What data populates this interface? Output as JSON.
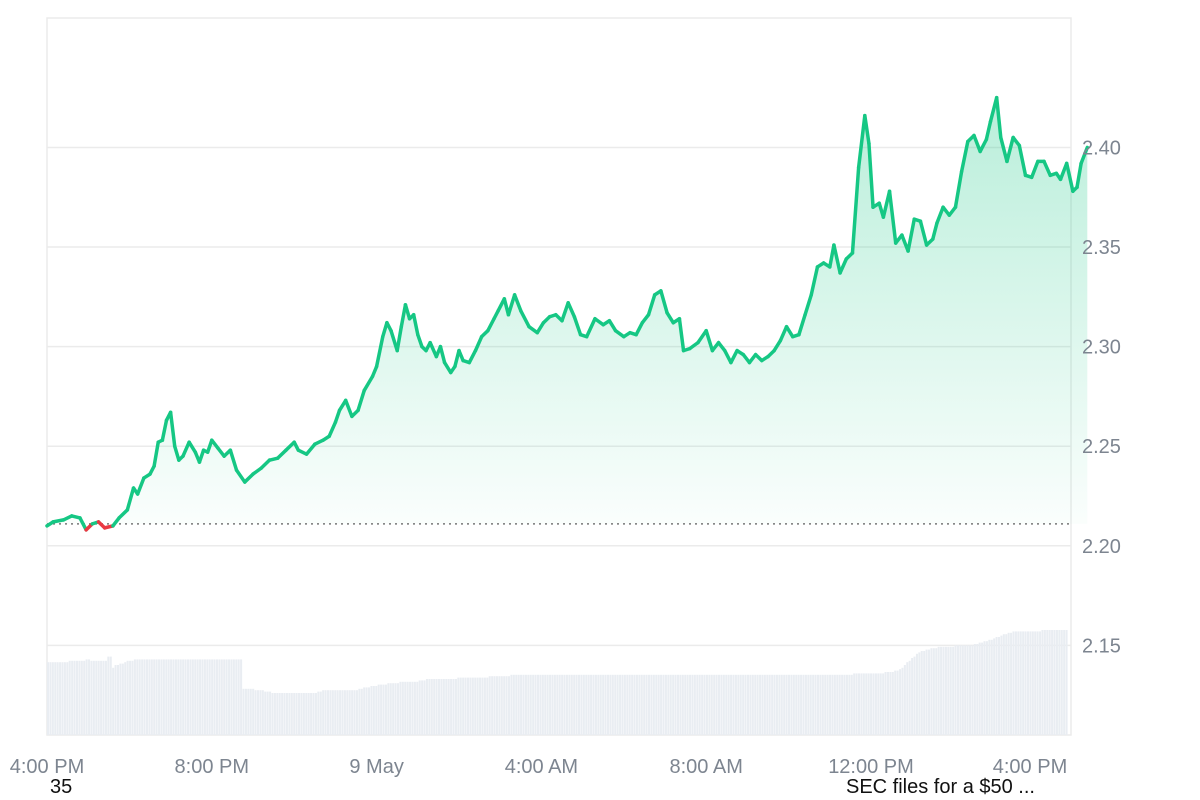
{
  "chart_data": {
    "type": "area",
    "title": "",
    "xlabel": "",
    "ylabel": "",
    "ylim": [
      2.105,
      2.465
    ],
    "y_ticks": [
      "2.40",
      "2.35",
      "2.30",
      "2.25",
      "2.20",
      "2.15"
    ],
    "x_ticks": [
      {
        "label": "4:00 PM",
        "t": 0
      },
      {
        "label": "8:00 PM",
        "t": 4
      },
      {
        "label": "9 May",
        "t": 8
      },
      {
        "label": "4:00 AM",
        "t": 12
      },
      {
        "label": "8:00 AM",
        "t": 16
      },
      {
        "label": "12:00 PM",
        "t": 20
      },
      {
        "label": "4:00 PM",
        "t": 24
      }
    ],
    "x_range_hours": [
      0,
      25
    ],
    "baseline": 2.211,
    "colors": {
      "up": "#16c784",
      "down": "#ea3943",
      "grid": "#ebebeb",
      "volume": "#e9edf2",
      "baseline": "#777777"
    },
    "series": [
      {
        "points": [
          [
            0.0,
            2.21
          ],
          [
            0.15,
            2.212
          ],
          [
            0.4,
            2.213
          ],
          [
            0.6,
            2.215
          ],
          [
            0.8,
            2.214
          ],
          [
            0.95,
            2.208
          ],
          [
            1.1,
            2.211
          ],
          [
            1.25,
            2.212
          ],
          [
            1.4,
            2.209
          ],
          [
            1.6,
            2.21
          ],
          [
            1.75,
            2.214
          ],
          [
            1.95,
            2.218
          ],
          [
            2.1,
            2.229
          ],
          [
            2.2,
            2.226
          ],
          [
            2.35,
            2.234
          ],
          [
            2.5,
            2.236
          ],
          [
            2.6,
            2.24
          ],
          [
            2.7,
            2.252
          ],
          [
            2.8,
            2.253
          ],
          [
            2.9,
            2.263
          ],
          [
            3.0,
            2.267
          ],
          [
            3.1,
            2.25
          ],
          [
            3.2,
            2.243
          ],
          [
            3.3,
            2.245
          ],
          [
            3.45,
            2.252
          ],
          [
            3.6,
            2.247
          ],
          [
            3.7,
            2.242
          ],
          [
            3.8,
            2.248
          ],
          [
            3.9,
            2.247
          ],
          [
            4.0,
            2.253
          ],
          [
            4.15,
            2.249
          ],
          [
            4.3,
            2.245
          ],
          [
            4.45,
            2.248
          ],
          [
            4.6,
            2.238
          ],
          [
            4.8,
            2.232
          ],
          [
            5.0,
            2.236
          ],
          [
            5.2,
            2.239
          ],
          [
            5.4,
            2.243
          ],
          [
            5.6,
            2.244
          ],
          [
            5.8,
            2.248
          ],
          [
            6.0,
            2.252
          ],
          [
            6.1,
            2.248
          ],
          [
            6.3,
            2.246
          ],
          [
            6.5,
            2.251
          ],
          [
            6.7,
            2.253
          ],
          [
            6.85,
            2.255
          ],
          [
            7.0,
            2.262
          ],
          [
            7.1,
            2.268
          ],
          [
            7.25,
            2.273
          ],
          [
            7.4,
            2.265
          ],
          [
            7.55,
            2.268
          ],
          [
            7.7,
            2.278
          ],
          [
            7.9,
            2.285
          ],
          [
            8.0,
            2.29
          ],
          [
            8.15,
            2.305
          ],
          [
            8.25,
            2.312
          ],
          [
            8.35,
            2.308
          ],
          [
            8.5,
            2.298
          ],
          [
            8.6,
            2.31
          ],
          [
            8.7,
            2.321
          ],
          [
            8.8,
            2.314
          ],
          [
            8.9,
            2.316
          ],
          [
            9.0,
            2.306
          ],
          [
            9.1,
            2.3
          ],
          [
            9.2,
            2.298
          ],
          [
            9.3,
            2.302
          ],
          [
            9.45,
            2.295
          ],
          [
            9.55,
            2.3
          ],
          [
            9.65,
            2.292
          ],
          [
            9.8,
            2.287
          ],
          [
            9.9,
            2.29
          ],
          [
            10.0,
            2.298
          ],
          [
            10.1,
            2.293
          ],
          [
            10.25,
            2.292
          ],
          [
            10.4,
            2.298
          ],
          [
            10.55,
            2.305
          ],
          [
            10.7,
            2.308
          ],
          [
            10.85,
            2.314
          ],
          [
            10.95,
            2.318
          ],
          [
            11.1,
            2.324
          ],
          [
            11.2,
            2.316
          ],
          [
            11.35,
            2.326
          ],
          [
            11.5,
            2.318
          ],
          [
            11.7,
            2.31
          ],
          [
            11.9,
            2.307
          ],
          [
            12.05,
            2.312
          ],
          [
            12.2,
            2.315
          ],
          [
            12.35,
            2.316
          ],
          [
            12.5,
            2.313
          ],
          [
            12.65,
            2.322
          ],
          [
            12.8,
            2.315
          ],
          [
            12.95,
            2.306
          ],
          [
            13.1,
            2.305
          ],
          [
            13.3,
            2.314
          ],
          [
            13.5,
            2.311
          ],
          [
            13.65,
            2.313
          ],
          [
            13.8,
            2.308
          ],
          [
            14.0,
            2.305
          ],
          [
            14.15,
            2.307
          ],
          [
            14.3,
            2.306
          ],
          [
            14.45,
            2.312
          ],
          [
            14.6,
            2.316
          ],
          [
            14.75,
            2.326
          ],
          [
            14.9,
            2.328
          ],
          [
            15.05,
            2.317
          ],
          [
            15.2,
            2.312
          ],
          [
            15.35,
            2.314
          ],
          [
            15.45,
            2.298
          ],
          [
            15.6,
            2.299
          ],
          [
            15.8,
            2.302
          ],
          [
            16.0,
            2.308
          ],
          [
            16.15,
            2.298
          ],
          [
            16.3,
            2.302
          ],
          [
            16.45,
            2.298
          ],
          [
            16.6,
            2.292
          ],
          [
            16.75,
            2.298
          ],
          [
            16.9,
            2.296
          ],
          [
            17.05,
            2.292
          ],
          [
            17.2,
            2.296
          ],
          [
            17.35,
            2.293
          ],
          [
            17.5,
            2.295
          ],
          [
            17.65,
            2.298
          ],
          [
            17.8,
            2.303
          ],
          [
            17.95,
            2.31
          ],
          [
            18.1,
            2.305
          ],
          [
            18.25,
            2.306
          ],
          [
            18.4,
            2.316
          ],
          [
            18.55,
            2.326
          ],
          [
            18.7,
            2.34
          ],
          [
            18.85,
            2.342
          ],
          [
            19.0,
            2.34
          ],
          [
            19.1,
            2.351
          ],
          [
            19.25,
            2.337
          ],
          [
            19.4,
            2.344
          ],
          [
            19.55,
            2.347
          ],
          [
            19.7,
            2.39
          ],
          [
            19.85,
            2.416
          ],
          [
            19.95,
            2.402
          ],
          [
            20.05,
            2.37
          ],
          [
            20.2,
            2.372
          ],
          [
            20.3,
            2.365
          ],
          [
            20.45,
            2.378
          ],
          [
            20.6,
            2.352
          ],
          [
            20.75,
            2.356
          ],
          [
            20.9,
            2.348
          ],
          [
            21.05,
            2.364
          ],
          [
            21.2,
            2.363
          ],
          [
            21.35,
            2.351
          ],
          [
            21.5,
            2.354
          ],
          [
            21.6,
            2.362
          ],
          [
            21.75,
            2.37
          ],
          [
            21.9,
            2.366
          ],
          [
            22.05,
            2.37
          ],
          [
            22.2,
            2.388
          ],
          [
            22.35,
            2.403
          ],
          [
            22.5,
            2.406
          ],
          [
            22.65,
            2.398
          ],
          [
            22.8,
            2.404
          ],
          [
            22.9,
            2.413
          ],
          [
            23.05,
            2.425
          ],
          [
            23.15,
            2.405
          ],
          [
            23.3,
            2.393
          ],
          [
            23.45,
            2.405
          ],
          [
            23.6,
            2.401
          ],
          [
            23.75,
            2.386
          ],
          [
            23.9,
            2.385
          ],
          [
            24.05,
            2.393
          ],
          [
            24.2,
            2.393
          ],
          [
            24.35,
            2.386
          ],
          [
            24.5,
            2.387
          ],
          [
            24.6,
            2.384
          ],
          [
            24.75,
            2.392
          ],
          [
            24.9,
            2.378
          ],
          [
            25.0,
            2.38
          ],
          [
            25.1,
            2.392
          ],
          [
            25.25,
            2.4
          ]
        ]
      }
    ],
    "volume": [
      0.52,
      0.52,
      0.52,
      0.52,
      0.52,
      0.52,
      0.52,
      0.52,
      0.52,
      0.53,
      0.53,
      0.53,
      0.53,
      0.53,
      0.53,
      0.53,
      0.54,
      0.54,
      0.53,
      0.53,
      0.53,
      0.53,
      0.53,
      0.53,
      0.53,
      0.56,
      0.56,
      0.48,
      0.5,
      0.5,
      0.51,
      0.51,
      0.52,
      0.53,
      0.53,
      0.53,
      0.54,
      0.54,
      0.54,
      0.54,
      0.54,
      0.54,
      0.54,
      0.54,
      0.54,
      0.54,
      0.54,
      0.54,
      0.54,
      0.54,
      0.54,
      0.54,
      0.54,
      0.54,
      0.54,
      0.54,
      0.54,
      0.54,
      0.54,
      0.54,
      0.54,
      0.54,
      0.54,
      0.54,
      0.54,
      0.54,
      0.54,
      0.54,
      0.54,
      0.54,
      0.54,
      0.54,
      0.54,
      0.54,
      0.54,
      0.54,
      0.54,
      0.54,
      0.54,
      0.54,
      0.54,
      0.33,
      0.33,
      0.33,
      0.33,
      0.33,
      0.32,
      0.32,
      0.32,
      0.32,
      0.31,
      0.31,
      0.31,
      0.3,
      0.3,
      0.3,
      0.3,
      0.3,
      0.3,
      0.3,
      0.3,
      0.3,
      0.3,
      0.3,
      0.3,
      0.3,
      0.3,
      0.3,
      0.3,
      0.3,
      0.3,
      0.3,
      0.31,
      0.31,
      0.32,
      0.32,
      0.32,
      0.32,
      0.32,
      0.32,
      0.32,
      0.32,
      0.32,
      0.32,
      0.32,
      0.32,
      0.32,
      0.32,
      0.32,
      0.33,
      0.33,
      0.34,
      0.34,
      0.34,
      0.35,
      0.35,
      0.35,
      0.36,
      0.36,
      0.36,
      0.36,
      0.37,
      0.37,
      0.37,
      0.37,
      0.37,
      0.38,
      0.38,
      0.38,
      0.38,
      0.38,
      0.38,
      0.38,
      0.38,
      0.39,
      0.39,
      0.39,
      0.4,
      0.4,
      0.4,
      0.4,
      0.4,
      0.4,
      0.4,
      0.4,
      0.4,
      0.4,
      0.4,
      0.4,
      0.4,
      0.41,
      0.41,
      0.41,
      0.41,
      0.41,
      0.41,
      0.41,
      0.41,
      0.41,
      0.41,
      0.41,
      0.41,
      0.41,
      0.42,
      0.42,
      0.42,
      0.42,
      0.42,
      0.42,
      0.42,
      0.42,
      0.42,
      0.43,
      0.43,
      0.43,
      0.43,
      0.43,
      0.43,
      0.43,
      0.43,
      0.43,
      0.43,
      0.43,
      0.43,
      0.43,
      0.43,
      0.43,
      0.43,
      0.43,
      0.43,
      0.43,
      0.43,
      0.43,
      0.43,
      0.43,
      0.43,
      0.43,
      0.43,
      0.43,
      0.43,
      0.43,
      0.43,
      0.43,
      0.43,
      0.43,
      0.43,
      0.43,
      0.43,
      0.43,
      0.43,
      0.43,
      0.43,
      0.43,
      0.43,
      0.43,
      0.43,
      0.43,
      0.43,
      0.43,
      0.43,
      0.43,
      0.43,
      0.43,
      0.43,
      0.43,
      0.43,
      0.43,
      0.43,
      0.43,
      0.43,
      0.43,
      0.43,
      0.43,
      0.43,
      0.43,
      0.43,
      0.43,
      0.43,
      0.43,
      0.43,
      0.43,
      0.43,
      0.43,
      0.43,
      0.43,
      0.43,
      0.43,
      0.43,
      0.43,
      0.43,
      0.43,
      0.43,
      0.43,
      0.43,
      0.43,
      0.43,
      0.43,
      0.43,
      0.43,
      0.43,
      0.43,
      0.43,
      0.43,
      0.43,
      0.43,
      0.43,
      0.43,
      0.43,
      0.43,
      0.43,
      0.43,
      0.43,
      0.43,
      0.43,
      0.43,
      0.43,
      0.43,
      0.43,
      0.43,
      0.43,
      0.43,
      0.43,
      0.43,
      0.43,
      0.43,
      0.43,
      0.43,
      0.43,
      0.43,
      0.43,
      0.43,
      0.43,
      0.43,
      0.43,
      0.43,
      0.43,
      0.43,
      0.43,
      0.43,
      0.43,
      0.43,
      0.43,
      0.43,
      0.43,
      0.43,
      0.43,
      0.43,
      0.43,
      0.43,
      0.43,
      0.43,
      0.43,
      0.43,
      0.43,
      0.44,
      0.44,
      0.44,
      0.44,
      0.44,
      0.44,
      0.44,
      0.44,
      0.44,
      0.44,
      0.44,
      0.44,
      0.44,
      0.45,
      0.45,
      0.45,
      0.45,
      0.46,
      0.46,
      0.47,
      0.48,
      0.5,
      0.52,
      0.53,
      0.55,
      0.56,
      0.58,
      0.59,
      0.6,
      0.6,
      0.61,
      0.61,
      0.62,
      0.62,
      0.62,
      0.63,
      0.63,
      0.63,
      0.63,
      0.63,
      0.63,
      0.63,
      0.64,
      0.64,
      0.64,
      0.64,
      0.64,
      0.64,
      0.64,
      0.64,
      0.65,
      0.65,
      0.66,
      0.66,
      0.67,
      0.67,
      0.68,
      0.68,
      0.69,
      0.7,
      0.7,
      0.71,
      0.72,
      0.72,
      0.73,
      0.73,
      0.74,
      0.74,
      0.74,
      0.74,
      0.74,
      0.74,
      0.74,
      0.74,
      0.74,
      0.74,
      0.74,
      0.74,
      0.75,
      0.75,
      0.75,
      0.75,
      0.75,
      0.75,
      0.75,
      0.75,
      0.75,
      0.75,
      0.75
    ]
  },
  "footer": {
    "left_text": "35",
    "right_text": "SEC files for a $50 ..."
  }
}
